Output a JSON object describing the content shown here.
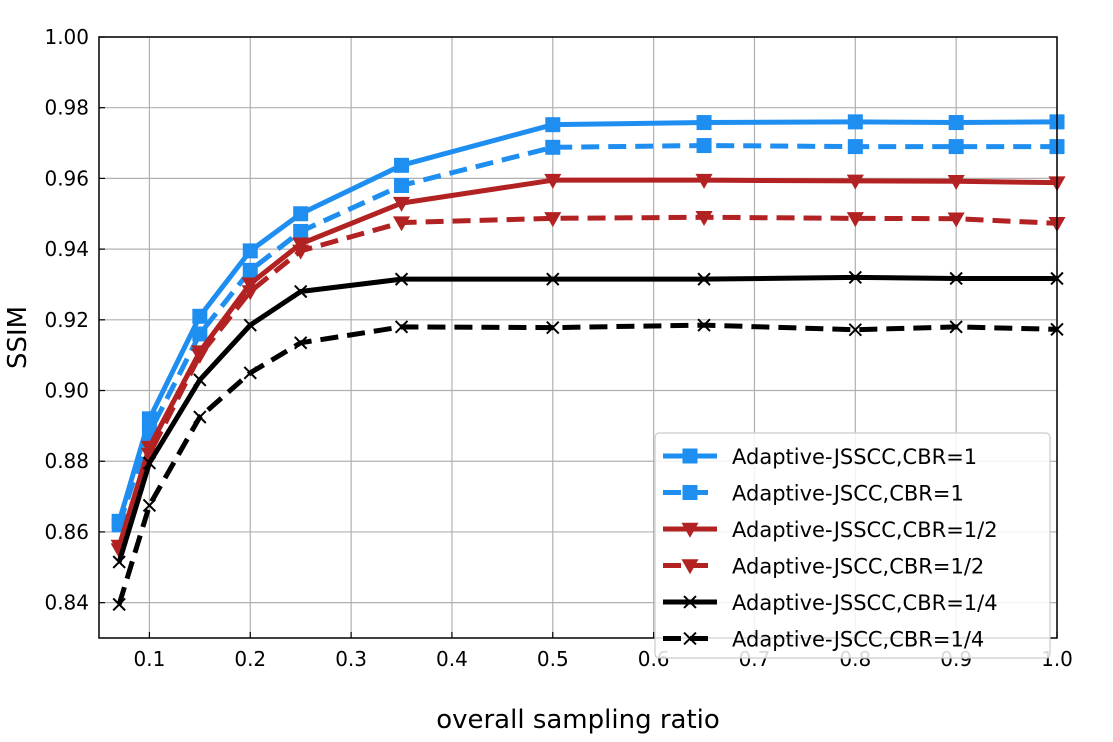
{
  "chart_data": {
    "type": "line",
    "title": "",
    "xlabel": "overall sampling ratio",
    "ylabel": "SSIM",
    "xlim": [
      0.05,
      1.0
    ],
    "ylim": [
      0.83,
      1.0
    ],
    "grid": true,
    "legend_position": "bottom-right",
    "xticks": [
      0.1,
      0.2,
      0.3,
      0.4,
      0.5,
      0.6,
      0.7,
      0.8,
      0.9,
      1.0
    ],
    "xtick_labels": [
      "0.1",
      "0.2",
      "0.3",
      "0.4",
      "0.5",
      "0.6",
      "0.7",
      "0.8",
      "0.9",
      "1.0"
    ],
    "yticks": [
      0.84,
      0.86,
      0.88,
      0.9,
      0.92,
      0.94,
      0.96,
      0.98,
      1.0
    ],
    "ytick_labels": [
      "0.84",
      "0.86",
      "0.88",
      "0.90",
      "0.92",
      "0.94",
      "0.96",
      "0.98",
      "1.00"
    ],
    "x": [
      0.07,
      0.1,
      0.15,
      0.2,
      0.25,
      0.35,
      0.5,
      0.65,
      0.8,
      0.9,
      1.0
    ],
    "series": [
      {
        "name": "Adaptive-JSSCC,CBR=1",
        "color": "#1f8ef1",
        "dash": "solid",
        "marker": "square",
        "values": [
          0.863,
          0.892,
          0.921,
          0.9395,
          0.95,
          0.9637,
          0.9752,
          0.9758,
          0.976,
          0.9758,
          0.976
        ]
      },
      {
        "name": "Adaptive-JSCC,CBR=1",
        "color": "#1f8ef1",
        "dash": "dashed",
        "marker": "square",
        "values": [
          0.862,
          0.888,
          0.916,
          0.934,
          0.945,
          0.958,
          0.9688,
          0.9693,
          0.969,
          0.969,
          0.969
        ]
      },
      {
        "name": "Adaptive-JSSCC,CBR=1/2",
        "color": "#b22222",
        "dash": "solid",
        "marker": "triangle-down",
        "values": [
          0.856,
          0.884,
          0.911,
          0.9302,
          0.9415,
          0.953,
          0.9595,
          0.9595,
          0.9593,
          0.9592,
          0.9588
        ]
      },
      {
        "name": "Adaptive-JSCC,CBR=1/2",
        "color": "#b22222",
        "dash": "dashed",
        "marker": "triangle-down",
        "values": [
          0.855,
          0.882,
          0.91,
          0.928,
          0.9395,
          0.9475,
          0.9487,
          0.949,
          0.9487,
          0.9486,
          0.9473
        ]
      },
      {
        "name": "Adaptive-JSSCC,CBR=1/4",
        "color": "#000000",
        "dash": "solid",
        "marker": "x",
        "values": [
          0.8515,
          0.8795,
          0.903,
          0.9185,
          0.928,
          0.9315,
          0.9315,
          0.9315,
          0.932,
          0.9317,
          0.9317
        ]
      },
      {
        "name": "Adaptive-JSCC,CBR=1/4",
        "color": "#000000",
        "dash": "dashed",
        "marker": "x",
        "values": [
          0.8395,
          0.8675,
          0.8925,
          0.905,
          0.9135,
          0.918,
          0.9178,
          0.9185,
          0.9172,
          0.918,
          0.9173
        ]
      }
    ]
  }
}
